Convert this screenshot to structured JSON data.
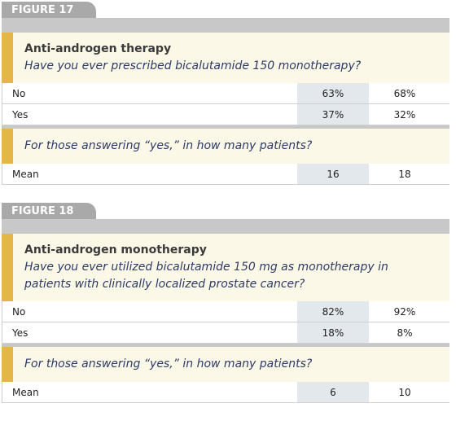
{
  "figures": [
    {
      "label": "FIGURE 17",
      "title": "Anti-androgen therapy",
      "question": "Have you ever prescribed bicalutamide 150 monotherapy?",
      "rows": [
        [
          "No",
          "63%",
          "68%"
        ],
        [
          "Yes",
          "37%",
          "32%"
        ]
      ],
      "followup": "For those answering “yes,” in how many patients?",
      "followup_rows": [
        [
          "Mean",
          "16",
          "18"
        ]
      ]
    },
    {
      "label": "FIGURE 18",
      "title": "Anti-androgen monotherapy",
      "question": "Have you ever utilized bicalutamide 150 mg as monotherapy in patients with clinically localized prostate cancer?",
      "rows": [
        [
          "No",
          "82%",
          "92%"
        ],
        [
          "Yes",
          "18%",
          "8%"
        ]
      ],
      "followup": "For those answering “yes,” in how many patients?",
      "followup_rows": [
        [
          "Mean",
          "6",
          "10"
        ]
      ]
    }
  ]
}
